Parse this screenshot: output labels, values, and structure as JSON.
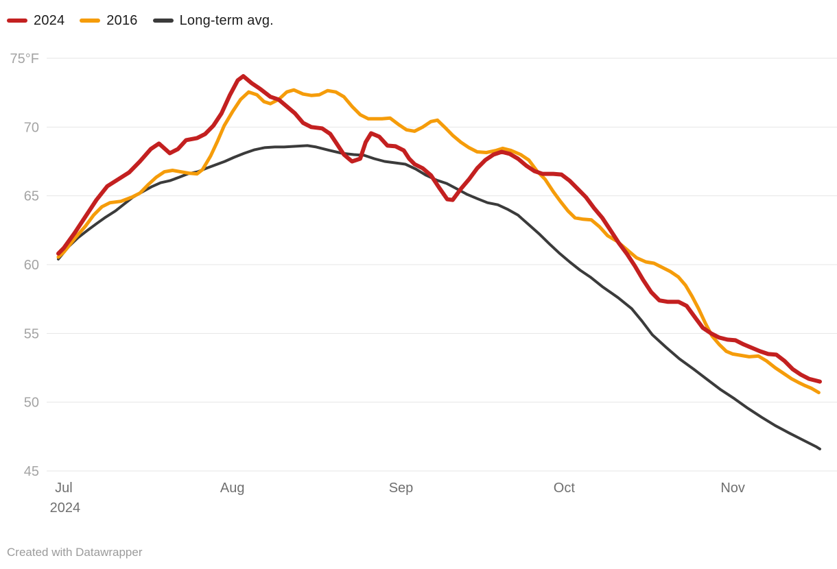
{
  "legend": {
    "items": [
      {
        "label": "2024",
        "color": "#c32020"
      },
      {
        "label": "2016",
        "color": "#f59c0a"
      },
      {
        "label": "Long-term avg.",
        "color": "#3b3b3b"
      }
    ]
  },
  "footer": {
    "text": "Created with Datawrapper"
  },
  "colors": {
    "grid": "#e4e4e4",
    "y_tick_text": "#a4a4a4",
    "x_tick_text": "#6f6f6f",
    "legend_text": "#1d1d1d",
    "footer_text": "#9b9b9b",
    "background": "#ffffff"
  },
  "chart_data": {
    "type": "line",
    "title": "",
    "unit": "°F",
    "x_note": "d = days since Jul 1 2024; x domain spans Jun 30 to Nov 17",
    "x_domain": [
      -1,
      139
    ],
    "ylim": [
      45,
      75
    ],
    "grid": true,
    "legend_position": "top-left",
    "y_ticks": [
      {
        "v": 75,
        "label": "75°F"
      },
      {
        "v": 70,
        "label": "70"
      },
      {
        "v": 65,
        "label": "65"
      },
      {
        "v": 60,
        "label": "60"
      },
      {
        "v": 55,
        "label": "55"
      },
      {
        "v": 50,
        "label": "50"
      },
      {
        "v": 45,
        "label": "45"
      }
    ],
    "x_ticks": [
      {
        "d": 0,
        "label": "Jul",
        "sublabel": "2024"
      },
      {
        "d": 31,
        "label": "Aug",
        "sublabel": ""
      },
      {
        "d": 62,
        "label": "Sep",
        "sublabel": ""
      },
      {
        "d": 92,
        "label": "Oct",
        "sublabel": ""
      },
      {
        "d": 123,
        "label": "Nov",
        "sublabel": ""
      }
    ],
    "series": [
      {
        "name": "Long-term avg.",
        "color": "#3b3b3b",
        "stroke_width": 4,
        "points": [
          [
            -1,
            60.4
          ],
          [
            1,
            61.35
          ],
          [
            2.6,
            61.95
          ],
          [
            4.4,
            62.5
          ],
          [
            6.1,
            63.0
          ],
          [
            7.7,
            63.45
          ],
          [
            9.5,
            63.9
          ],
          [
            11.1,
            64.4
          ],
          [
            12.7,
            64.9
          ],
          [
            14.5,
            65.3
          ],
          [
            16.1,
            65.65
          ],
          [
            17.8,
            65.95
          ],
          [
            19.5,
            66.1
          ],
          [
            21.2,
            66.35
          ],
          [
            22.8,
            66.6
          ],
          [
            24.6,
            66.75
          ],
          [
            26.2,
            67.0
          ],
          [
            27.9,
            67.25
          ],
          [
            29.6,
            67.5
          ],
          [
            31.3,
            67.8
          ],
          [
            33.2,
            68.1
          ],
          [
            35.1,
            68.35
          ],
          [
            36.9,
            68.5
          ],
          [
            38.8,
            68.55
          ],
          [
            40.5,
            68.55
          ],
          [
            42.6,
            68.6
          ],
          [
            44.8,
            68.65
          ],
          [
            46.4,
            68.55
          ],
          [
            48.9,
            68.3
          ],
          [
            51.1,
            68.1
          ],
          [
            53.3,
            68.0
          ],
          [
            55.2,
            67.95
          ],
          [
            57.1,
            67.7
          ],
          [
            59,
            67.5
          ],
          [
            60.9,
            67.4
          ],
          [
            62.8,
            67.3
          ],
          [
            64.7,
            66.95
          ],
          [
            66.6,
            66.5
          ],
          [
            68.5,
            66.15
          ],
          [
            70.4,
            65.9
          ],
          [
            72.3,
            65.5
          ],
          [
            74.2,
            65.1
          ],
          [
            76,
            64.8
          ],
          [
            77.9,
            64.5
          ],
          [
            79.8,
            64.35
          ],
          [
            81.7,
            64.0
          ],
          [
            83.5,
            63.6
          ],
          [
            85.5,
            62.9
          ],
          [
            87.5,
            62.2
          ],
          [
            89.3,
            61.5
          ],
          [
            91.2,
            60.8
          ],
          [
            93,
            60.2
          ],
          [
            94.9,
            59.6
          ],
          [
            96.8,
            59.1
          ],
          [
            99,
            58.4
          ],
          [
            101.9,
            57.6
          ],
          [
            104.4,
            56.8
          ],
          [
            106.3,
            55.9
          ],
          [
            108.2,
            54.9
          ],
          [
            110.7,
            54.0
          ],
          [
            113.2,
            53.15
          ],
          [
            115.8,
            52.4
          ],
          [
            118.3,
            51.65
          ],
          [
            120.8,
            50.9
          ],
          [
            123.3,
            50.25
          ],
          [
            125.8,
            49.55
          ],
          [
            128.3,
            48.9
          ],
          [
            130.8,
            48.3
          ],
          [
            133.4,
            47.75
          ],
          [
            135.9,
            47.25
          ],
          [
            138.4,
            46.75
          ],
          [
            139,
            46.6
          ]
        ]
      },
      {
        "name": "2016",
        "color": "#f59c0a",
        "stroke_width": 5,
        "points": [
          [
            -1,
            60.55
          ],
          [
            0,
            60.9
          ],
          [
            2,
            61.9
          ],
          [
            4,
            62.8
          ],
          [
            5.5,
            63.6
          ],
          [
            7,
            64.2
          ],
          [
            8.5,
            64.5
          ],
          [
            10.5,
            64.6
          ],
          [
            12.5,
            64.9
          ],
          [
            14,
            65.2
          ],
          [
            15.5,
            65.8
          ],
          [
            17,
            66.35
          ],
          [
            18.5,
            66.75
          ],
          [
            20,
            66.85
          ],
          [
            21.5,
            66.75
          ],
          [
            23,
            66.65
          ],
          [
            24.5,
            66.6
          ],
          [
            25.5,
            66.9
          ],
          [
            27,
            67.9
          ],
          [
            28.3,
            69.0
          ],
          [
            29.5,
            70.1
          ],
          [
            31,
            71.1
          ],
          [
            32.5,
            72.0
          ],
          [
            34,
            72.55
          ],
          [
            35.5,
            72.35
          ],
          [
            36.8,
            71.85
          ],
          [
            38,
            71.7
          ],
          [
            39.5,
            72.0
          ],
          [
            41,
            72.55
          ],
          [
            42.3,
            72.7
          ],
          [
            44,
            72.4
          ],
          [
            45.5,
            72.3
          ],
          [
            47,
            72.35
          ],
          [
            48.5,
            72.65
          ],
          [
            50,
            72.55
          ],
          [
            51.5,
            72.2
          ],
          [
            53,
            71.5
          ],
          [
            54.5,
            70.9
          ],
          [
            56,
            70.6
          ],
          [
            58.5,
            70.6
          ],
          [
            60,
            70.65
          ],
          [
            61.5,
            70.2
          ],
          [
            63,
            69.8
          ],
          [
            64.5,
            69.7
          ],
          [
            66,
            70.0
          ],
          [
            67.5,
            70.4
          ],
          [
            68.7,
            70.5
          ],
          [
            70,
            70.0
          ],
          [
            71.5,
            69.4
          ],
          [
            73,
            68.9
          ],
          [
            74.5,
            68.5
          ],
          [
            76,
            68.2
          ],
          [
            77.7,
            68.15
          ],
          [
            79.5,
            68.3
          ],
          [
            80.7,
            68.45
          ],
          [
            82.2,
            68.3
          ],
          [
            84,
            68.0
          ],
          [
            85.5,
            67.6
          ],
          [
            87,
            66.8
          ],
          [
            88.5,
            66.2
          ],
          [
            90,
            65.3
          ],
          [
            91.3,
            64.6
          ],
          [
            92.7,
            63.9
          ],
          [
            94,
            63.4
          ],
          [
            95.5,
            63.3
          ],
          [
            97,
            63.25
          ],
          [
            98.5,
            62.75
          ],
          [
            100,
            62.1
          ],
          [
            101.7,
            61.7
          ],
          [
            103.5,
            61.1
          ],
          [
            105.3,
            60.5
          ],
          [
            107,
            60.2
          ],
          [
            108.5,
            60.1
          ],
          [
            110,
            59.8
          ],
          [
            111.5,
            59.5
          ],
          [
            113,
            59.1
          ],
          [
            114.3,
            58.5
          ],
          [
            115.5,
            57.7
          ],
          [
            116.7,
            56.8
          ],
          [
            118,
            55.7
          ],
          [
            119.2,
            54.8
          ],
          [
            120.5,
            54.2
          ],
          [
            121.8,
            53.7
          ],
          [
            123,
            53.5
          ],
          [
            124.5,
            53.4
          ],
          [
            126,
            53.3
          ],
          [
            127.7,
            53.35
          ],
          [
            129.2,
            53.0
          ],
          [
            130.8,
            52.5
          ],
          [
            132.3,
            52.1
          ],
          [
            133.8,
            51.7
          ],
          [
            135,
            51.45
          ],
          [
            136.3,
            51.2
          ],
          [
            137.5,
            51.0
          ],
          [
            138.8,
            50.7
          ]
        ]
      },
      {
        "name": "2024",
        "color": "#c32020",
        "stroke_width": 6,
        "points": [
          [
            -1,
            60.8
          ],
          [
            0,
            61.2
          ],
          [
            2,
            62.3
          ],
          [
            4,
            63.5
          ],
          [
            6,
            64.7
          ],
          [
            8,
            65.7
          ],
          [
            10,
            66.2
          ],
          [
            12,
            66.7
          ],
          [
            14,
            67.5
          ],
          [
            16,
            68.4
          ],
          [
            17.5,
            68.8
          ],
          [
            19.5,
            68.1
          ],
          [
            21,
            68.4
          ],
          [
            22.5,
            69.05
          ],
          [
            24.5,
            69.2
          ],
          [
            26,
            69.5
          ],
          [
            27.5,
            70.1
          ],
          [
            29,
            71.0
          ],
          [
            30.5,
            72.3
          ],
          [
            32,
            73.4
          ],
          [
            33,
            73.7
          ],
          [
            34.5,
            73.2
          ],
          [
            36,
            72.8
          ],
          [
            38,
            72.2
          ],
          [
            39.5,
            72.0
          ],
          [
            41,
            71.5
          ],
          [
            42.5,
            71.0
          ],
          [
            44,
            70.3
          ],
          [
            45.5,
            70.0
          ],
          [
            47.5,
            69.9
          ],
          [
            49,
            69.5
          ],
          [
            50,
            68.9
          ],
          [
            51.5,
            68.0
          ],
          [
            53,
            67.5
          ],
          [
            54.5,
            67.7
          ],
          [
            55.5,
            68.9
          ],
          [
            56.5,
            69.55
          ],
          [
            58,
            69.3
          ],
          [
            59.5,
            68.65
          ],
          [
            61,
            68.6
          ],
          [
            62.5,
            68.3
          ],
          [
            63.5,
            67.7
          ],
          [
            64.5,
            67.3
          ],
          [
            66,
            67.0
          ],
          [
            67.5,
            66.5
          ],
          [
            69,
            65.6
          ],
          [
            70.5,
            64.75
          ],
          [
            71.5,
            64.7
          ],
          [
            73,
            65.5
          ],
          [
            74.5,
            66.2
          ],
          [
            76,
            67.0
          ],
          [
            77.5,
            67.6
          ],
          [
            79,
            68.0
          ],
          [
            80.5,
            68.2
          ],
          [
            82,
            68.05
          ],
          [
            83.5,
            67.7
          ],
          [
            85,
            67.2
          ],
          [
            86.5,
            66.8
          ],
          [
            88,
            66.6
          ],
          [
            90,
            66.6
          ],
          [
            91.5,
            66.55
          ],
          [
            93,
            66.1
          ],
          [
            94.5,
            65.5
          ],
          [
            96,
            64.9
          ],
          [
            97.5,
            64.1
          ],
          [
            99,
            63.4
          ],
          [
            100.5,
            62.5
          ],
          [
            102,
            61.6
          ],
          [
            103.5,
            60.8
          ],
          [
            105,
            59.9
          ],
          [
            106.5,
            58.9
          ],
          [
            108,
            58.0
          ],
          [
            109.5,
            57.4
          ],
          [
            111,
            57.3
          ],
          [
            113,
            57.3
          ],
          [
            114.5,
            57.0
          ],
          [
            116,
            56.2
          ],
          [
            117.5,
            55.4
          ],
          [
            119,
            55.0
          ],
          [
            120.5,
            54.7
          ],
          [
            122,
            54.55
          ],
          [
            123.5,
            54.5
          ],
          [
            125,
            54.2
          ],
          [
            126.5,
            53.95
          ],
          [
            128,
            53.7
          ],
          [
            129.5,
            53.5
          ],
          [
            131,
            53.45
          ],
          [
            132.5,
            53.0
          ],
          [
            134,
            52.4
          ],
          [
            135.5,
            52.0
          ],
          [
            137,
            51.7
          ],
          [
            138,
            51.6
          ],
          [
            139,
            51.5
          ]
        ]
      }
    ]
  }
}
